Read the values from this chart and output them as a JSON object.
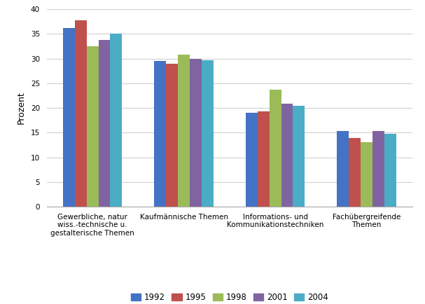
{
  "categories": [
    "Gewerbliche, natur\nwiss.-technische u.\ngestalterische Themen",
    "Kaufmännische Themen",
    "Informations- und\nKommunikationstechniken",
    "Fachübergreifende\nThemen"
  ],
  "years": [
    "1992",
    "1995",
    "1998",
    "2001",
    "2004"
  ],
  "values": {
    "1992": [
      36.2,
      29.5,
      19.0,
      15.3
    ],
    "1995": [
      37.8,
      29.0,
      19.3,
      13.9
    ],
    "1998": [
      32.5,
      30.8,
      23.7,
      13.1
    ],
    "2001": [
      33.7,
      29.9,
      20.9,
      15.4
    ],
    "2004": [
      35.1,
      29.6,
      20.5,
      14.8
    ]
  },
  "colors": {
    "1992": "#4472C4",
    "1995": "#C0504D",
    "1998": "#9BBB59",
    "2001": "#8064A2",
    "2004": "#4BACC6"
  },
  "ylabel": "Prozent",
  "ylim": [
    0,
    40
  ],
  "yticks": [
    0,
    5,
    10,
    15,
    20,
    25,
    30,
    35,
    40
  ],
  "bar_width": 0.13,
  "grid_color": "#d0d0d0",
  "background_color": "#ffffff",
  "legend_fontsize": 8.5,
  "axis_fontsize": 9,
  "tick_fontsize": 7.5
}
